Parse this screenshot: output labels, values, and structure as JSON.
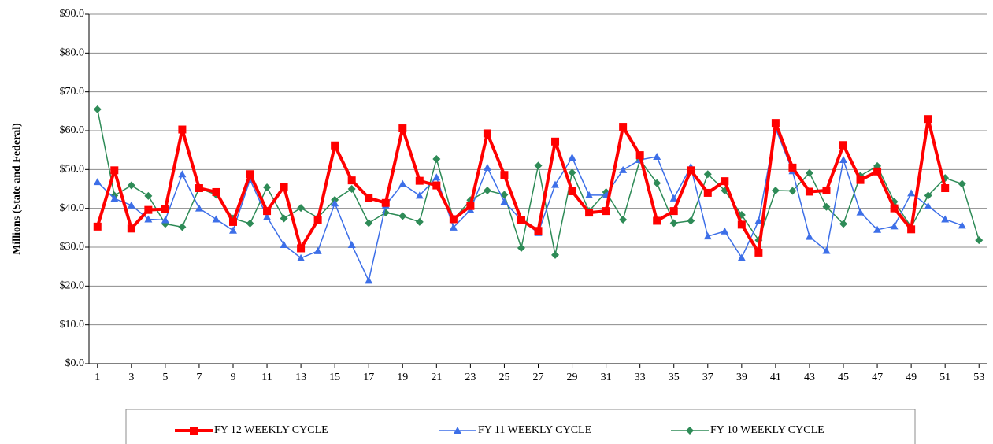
{
  "chart_data": {
    "type": "line",
    "y_label": "Millions (State and Federal)",
    "x": [
      1,
      2,
      3,
      4,
      5,
      6,
      7,
      8,
      9,
      10,
      11,
      12,
      13,
      14,
      15,
      16,
      17,
      18,
      19,
      20,
      21,
      22,
      23,
      24,
      25,
      26,
      27,
      28,
      29,
      30,
      31,
      32,
      33,
      34,
      35,
      36,
      37,
      38,
      39,
      40,
      41,
      42,
      43,
      44,
      45,
      46,
      47,
      48,
      49,
      50,
      51,
      52,
      53
    ],
    "xlim": [
      0.5,
      53.5
    ],
    "xticks": [
      1,
      3,
      5,
      7,
      9,
      11,
      13,
      15,
      17,
      19,
      21,
      23,
      25,
      27,
      29,
      31,
      33,
      35,
      37,
      39,
      41,
      43,
      45,
      47,
      49,
      51,
      53
    ],
    "ylim": [
      0,
      90
    ],
    "yticks": [
      {
        "value": 0,
        "label": "$0.0"
      },
      {
        "value": 10,
        "label": "$10.0"
      },
      {
        "value": 20,
        "label": "$20.0"
      },
      {
        "value": 30,
        "label": "$30.0"
      },
      {
        "value": 40,
        "label": "$40.0"
      },
      {
        "value": 50,
        "label": "$50.0"
      },
      {
        "value": 60,
        "label": "$60.0"
      },
      {
        "value": 70,
        "label": "$70.0"
      },
      {
        "value": 80,
        "label": "$80.0"
      },
      {
        "value": 90,
        "label": "$90.0"
      }
    ],
    "grid": true,
    "legend": "bottom",
    "series": [
      {
        "name": "FY 12 WEEKLY  CYCLE",
        "color": "#ff0000",
        "marker": "square",
        "width": 4,
        "values": [
          35.3,
          49.8,
          34.8,
          39.6,
          39.8,
          60.3,
          45.2,
          44.2,
          36.5,
          48.8,
          39.3,
          45.6,
          29.7,
          37.0,
          56.2,
          47.2,
          42.7,
          41.4,
          60.6,
          47.1,
          45.9,
          37.2,
          40.6,
          59.3,
          48.6,
          37.0,
          34.2,
          57.2,
          44.4,
          38.9,
          39.3,
          61.0,
          53.7,
          36.8,
          39.3,
          49.8,
          44.0,
          47.0,
          35.8,
          28.6,
          62.0,
          50.5,
          44.3,
          44.6,
          56.3,
          47.3,
          49.5,
          40.0,
          34.6,
          63.0,
          45.2,
          null,
          null
        ]
      },
      {
        "name": "FY 11 WEEKLY  CYCLE",
        "color": "#3d6fe8",
        "marker": "triangle",
        "width": 1.5,
        "values": [
          46.8,
          42.5,
          40.8,
          37.2,
          37.0,
          48.8,
          40.0,
          37.2,
          34.3,
          47.4,
          37.8,
          30.6,
          27.2,
          29.0,
          41.3,
          30.6,
          21.4,
          40.8,
          46.3,
          43.3,
          48.0,
          35.1,
          39.6,
          50.5,
          41.7,
          37.0,
          33.7,
          46.1,
          53.1,
          43.4,
          43.4,
          49.9,
          52.5,
          53.3,
          42.6,
          50.7,
          32.8,
          34.1,
          27.3,
          36.8,
          60.6,
          49.6,
          32.7,
          29.1,
          52.5,
          39.0,
          34.5,
          35.4,
          43.9,
          40.6,
          37.2,
          35.6,
          null
        ]
      },
      {
        "name": "FY 10 WEEKLY  CYCLE",
        "color": "#2e8b57",
        "marker": "diamond",
        "width": 1.5,
        "values": [
          65.5,
          43.3,
          45.9,
          43.2,
          36.0,
          35.2,
          45.2,
          43.5,
          37.4,
          36.1,
          45.4,
          37.4,
          40.1,
          37.6,
          42.2,
          45.0,
          36.2,
          38.9,
          38.0,
          36.5,
          52.7,
          37.1,
          42.1,
          44.6,
          43.5,
          29.8,
          51.0,
          28.0,
          49.2,
          39.3,
          44.2,
          37.1,
          52.5,
          46.5,
          36.2,
          36.8,
          48.8,
          44.6,
          38.3,
          31.8,
          44.6,
          44.5,
          49.1,
          40.4,
          36.0,
          48.4,
          50.9,
          41.7,
          35.2,
          43.3,
          47.8,
          46.3,
          31.8
        ]
      }
    ]
  }
}
